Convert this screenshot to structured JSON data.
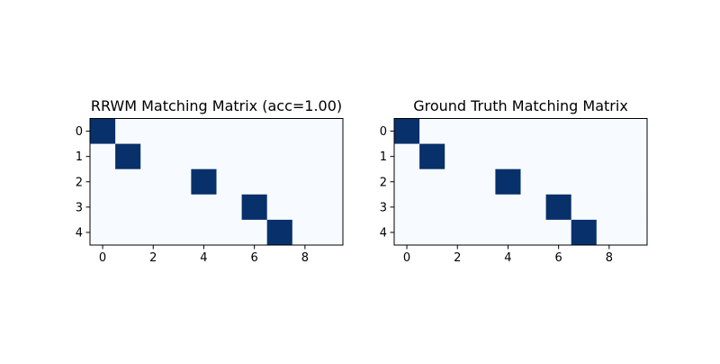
{
  "chart_data": [
    {
      "type": "heatmap",
      "title": "RRWM Matching Matrix (acc=1.00)",
      "rows": 5,
      "cols": 10,
      "values": [
        [
          1,
          0,
          0,
          0,
          0,
          0,
          0,
          0,
          0,
          0
        ],
        [
          0,
          1,
          0,
          0,
          0,
          0,
          0,
          0,
          0,
          0
        ],
        [
          0,
          0,
          0,
          0,
          1,
          0,
          0,
          0,
          0,
          0
        ],
        [
          0,
          0,
          0,
          0,
          0,
          0,
          1,
          0,
          0,
          0
        ],
        [
          0,
          0,
          0,
          0,
          0,
          0,
          0,
          1,
          0,
          0
        ]
      ],
      "x_ticks": [
        0,
        2,
        4,
        6,
        8
      ],
      "y_ticks": [
        0,
        1,
        2,
        3,
        4
      ],
      "colormap": {
        "low": "#f7fbff",
        "high": "#08306b"
      }
    },
    {
      "type": "heatmap",
      "title": "Ground Truth Matching Matrix",
      "rows": 5,
      "cols": 10,
      "values": [
        [
          1,
          0,
          0,
          0,
          0,
          0,
          0,
          0,
          0,
          0
        ],
        [
          0,
          1,
          0,
          0,
          0,
          0,
          0,
          0,
          0,
          0
        ],
        [
          0,
          0,
          0,
          0,
          1,
          0,
          0,
          0,
          0,
          0
        ],
        [
          0,
          0,
          0,
          0,
          0,
          0,
          1,
          0,
          0,
          0
        ],
        [
          0,
          0,
          0,
          0,
          0,
          0,
          0,
          1,
          0,
          0
        ]
      ],
      "x_ticks": [
        0,
        2,
        4,
        6,
        8
      ],
      "y_ticks": [
        0,
        1,
        2,
        3,
        4
      ],
      "colormap": {
        "low": "#f7fbff",
        "high": "#08306b"
      }
    }
  ]
}
